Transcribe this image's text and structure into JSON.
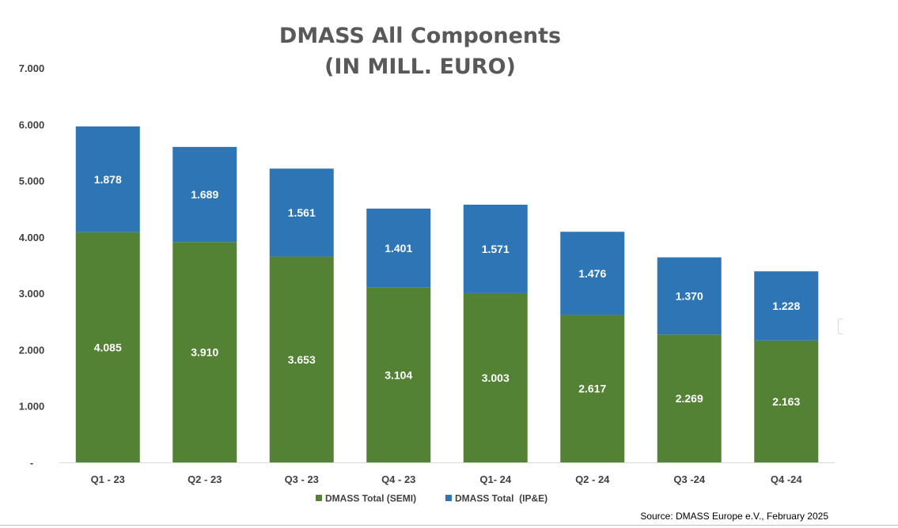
{
  "chart_data": {
    "type": "bar",
    "stacked": true,
    "title": "DMASS All Components",
    "subtitle": "(IN MILL. EURO)",
    "categories": [
      "Q1 - 23",
      "Q2 - 23",
      "Q3 - 23",
      "Q4 - 23",
      "Q1- 24",
      "Q2 - 24",
      "Q3 -24",
      "Q4 -24"
    ],
    "series": [
      {
        "name": "DMASS Total (SEMI)",
        "color": "#548235",
        "values": [
          4085,
          3910,
          3653,
          3104,
          3003,
          2617,
          2269,
          2163
        ],
        "labels": [
          "4.085",
          "3.910",
          "3.653",
          "3.104",
          "3.003",
          "2.617",
          "2.269",
          "2.163"
        ]
      },
      {
        "name": "DMASS Total  (IP&E)",
        "color": "#2e75b6",
        "values": [
          1878,
          1689,
          1561,
          1401,
          1571,
          1476,
          1370,
          1228
        ],
        "labels": [
          "1.878",
          "1.689",
          "1.561",
          "1.401",
          "1.571",
          "1.476",
          "1.370",
          "1.228"
        ]
      }
    ],
    "ylim": [
      0,
      7000
    ],
    "yticks": [
      0,
      1000,
      2000,
      3000,
      4000,
      5000,
      6000,
      7000
    ],
    "ytick_labels": [
      "-",
      "1.000",
      "2.000",
      "3.000",
      "4.000",
      "5.000",
      "6.000",
      "7.000"
    ],
    "grid": false,
    "legend_position": "bottom",
    "source": "Source: DMASS Europe e.V., February 2025",
    "title_color": "#595959",
    "text_color": "#404040"
  }
}
